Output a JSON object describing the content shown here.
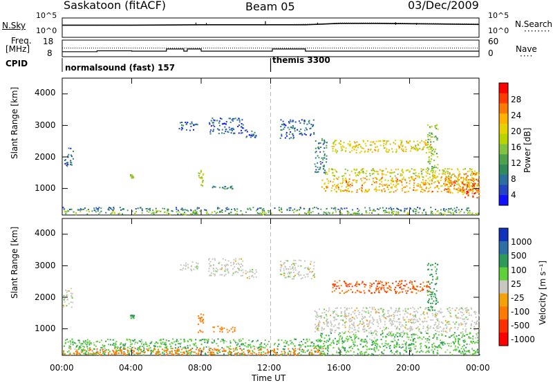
{
  "header": {
    "station": "Saskatoon (fitACF)",
    "beam": "Beam 05",
    "date": "03/Dec/2009"
  },
  "noise_panel": {
    "left_label": "N.Sky",
    "right_label": "N.Search",
    "left_ticks": [
      "10^5",
      "10^0"
    ],
    "right_ticks": [
      "10^5",
      "10^0"
    ]
  },
  "freq_panel": {
    "left_label_line1": "Freq.",
    "left_label_line2": "[MHz]",
    "right_label": "Nave",
    "left_ticks": [
      "18",
      "8"
    ],
    "right_ticks": [
      "60",
      "0"
    ]
  },
  "cpid_panel": {
    "label": "CPID",
    "segments": [
      {
        "name": "normalsound (fast) 157",
        "start_hr": 0,
        "end_hr": 12
      },
      {
        "name": "themis 3300",
        "start_hr": 12,
        "end_hr": 24
      }
    ]
  },
  "power_panel": {
    "ylabel": "Slant Range [km]",
    "yticks": [
      "4000",
      "3000",
      "2000",
      "1000"
    ],
    "colorbar_label": "Power [dB]",
    "colorbar_ticks": [
      "28",
      "24",
      "20",
      "16",
      "12",
      "8",
      "4"
    ],
    "colorbar_colors": [
      "#ff0000",
      "#ff3b00",
      "#ff7a00",
      "#ffb300",
      "#e6d200",
      "#b7d400",
      "#7fc341",
      "#4ea24c",
      "#2f8a5c",
      "#2b6fa0",
      "#2444c4",
      "#1010ff"
    ]
  },
  "velocity_panel": {
    "ylabel": "Slant Range [km]",
    "yticks": [
      "4000",
      "3000",
      "2000",
      "1000"
    ],
    "colorbar_label": "Velocity [m s⁻¹]",
    "colorbar_ticks": [
      "1000",
      "500",
      "100",
      "25",
      "-25",
      "-100",
      "-500",
      "-1000"
    ],
    "colorbar_colors": [
      "#1133bb",
      "#2e6fa6",
      "#2e9a5a",
      "#5fcf3a",
      "#c8c8c0",
      "#f4a20a",
      "#ff7a00",
      "#ff3000",
      "#ff0000"
    ]
  },
  "xaxis": {
    "label": "Time UT",
    "ticks": [
      "00:00",
      "04:00",
      "08:00",
      "12:00",
      "16:00",
      "20:00",
      "00:00"
    ]
  },
  "chart_data": [
    {
      "type": "line",
      "title": "Saskatoon (fitACF) Beam 05 03/Dec/2009",
      "description": "Noise panel",
      "x_unit": "hour UT",
      "xlim": [
        0,
        24
      ],
      "series": [
        {
          "name": "N.Sky",
          "x": [
            0,
            4,
            8,
            12,
            14,
            15,
            16,
            18,
            20,
            22,
            24
          ],
          "y_log10": [
            3.2,
            3.2,
            3.3,
            3.3,
            3.3,
            3.5,
            3.7,
            3.7,
            3.6,
            3.5,
            3.4
          ]
        },
        {
          "name": "N.Search",
          "x": [
            0,
            12,
            15,
            16,
            18,
            20,
            22,
            24
          ],
          "y_log10": [
            3.2,
            3.3,
            3.5,
            3.8,
            3.8,
            3.7,
            3.6,
            3.5
          ]
        }
      ]
    },
    {
      "type": "line",
      "description": "Frequency and Nave panel",
      "xlim": [
        0,
        24
      ],
      "ylim": [
        8,
        18
      ],
      "series": [
        {
          "name": "Freq.",
          "x": [
            0,
            2,
            3.9,
            4,
            5.9,
            6,
            6.3,
            7,
            7.2,
            8,
            12,
            12.1,
            13.5,
            14,
            24
          ],
          "y": [
            10.8,
            11.4,
            11.4,
            11.2,
            11.2,
            12.6,
            12.6,
            11.2,
            12.6,
            11.2,
            11.2,
            12.6,
            12.6,
            11.2,
            11.2
          ]
        },
        {
          "name": "Nave",
          "x": [
            0,
            24
          ],
          "y": [
            13.2,
            13.2
          ]
        }
      ]
    },
    {
      "type": "heatmap",
      "description": "Power panel (dB); blobs as [t0_hr, t1_hr, r0_km, r1_km, power_dB]",
      "xlabel": "Time UT",
      "ylabel": "Slant Range [km]",
      "xlim": [
        0,
        24
      ],
      "ylim": [
        180,
        4500
      ],
      "colorbar": {
        "label": "Power [dB]",
        "range": [
          0,
          32
        ]
      },
      "blobs": [
        [
          0.0,
          24.0,
          190,
          320,
          14
        ],
        [
          0.0,
          24.0,
          320,
          420,
          8
        ],
        [
          0.1,
          0.6,
          1700,
          2300,
          6
        ],
        [
          3.9,
          4.1,
          1350,
          1450,
          16
        ],
        [
          6.7,
          7.8,
          2850,
          3150,
          6
        ],
        [
          8.4,
          10.4,
          2750,
          3250,
          6
        ],
        [
          8.6,
          9.9,
          1000,
          1100,
          8
        ],
        [
          7.8,
          8.1,
          1100,
          1600,
          18
        ],
        [
          10.5,
          11.2,
          2600,
          2900,
          6
        ],
        [
          12.5,
          13.5,
          2600,
          3200,
          6
        ],
        [
          13.6,
          14.5,
          2700,
          3200,
          6
        ],
        [
          14.5,
          15.2,
          1500,
          2600,
          8
        ],
        [
          14.9,
          24.0,
          900,
          1400,
          22
        ],
        [
          15.1,
          24.0,
          1400,
          1650,
          18
        ],
        [
          15.5,
          21.2,
          2150,
          2550,
          20
        ],
        [
          21.0,
          21.6,
          1600,
          3100,
          14
        ],
        [
          22.0,
          24.0,
          850,
          1500,
          24
        ],
        [
          23.0,
          24.0,
          700,
          1200,
          26
        ]
      ]
    },
    {
      "type": "heatmap",
      "description": "Velocity panel (m/s); blobs as [t0_hr, t1_hr, r0_km, r1_km, velocity]",
      "xlabel": "Time UT",
      "ylabel": "Slant Range [km]",
      "xlim": [
        0,
        24
      ],
      "ylim": [
        180,
        4500
      ],
      "colorbar": {
        "label": "Velocity [m s-1]",
        "range": [
          -1000,
          1000
        ]
      },
      "blobs": [
        [
          0.0,
          15.0,
          190,
          700,
          50
        ],
        [
          0.0,
          15.0,
          190,
          400,
          -120
        ],
        [
          6.7,
          7.8,
          2850,
          3150,
          0
        ],
        [
          8.4,
          10.4,
          2700,
          3250,
          0
        ],
        [
          8.6,
          10.0,
          900,
          1100,
          -150
        ],
        [
          7.8,
          8.1,
          900,
          1500,
          -200
        ],
        [
          10.5,
          11.2,
          2600,
          2900,
          0
        ],
        [
          12.5,
          14.5,
          2600,
          3200,
          0
        ],
        [
          14.5,
          24.0,
          900,
          1700,
          0
        ],
        [
          14.8,
          24.0,
          190,
          900,
          50
        ],
        [
          15.5,
          21.2,
          2150,
          2550,
          -300
        ],
        [
          21.0,
          21.6,
          1600,
          3100,
          80
        ],
        [
          3.9,
          4.1,
          1350,
          1450,
          80
        ],
        [
          0.0,
          0.6,
          1700,
          2300,
          0
        ]
      ]
    }
  ]
}
